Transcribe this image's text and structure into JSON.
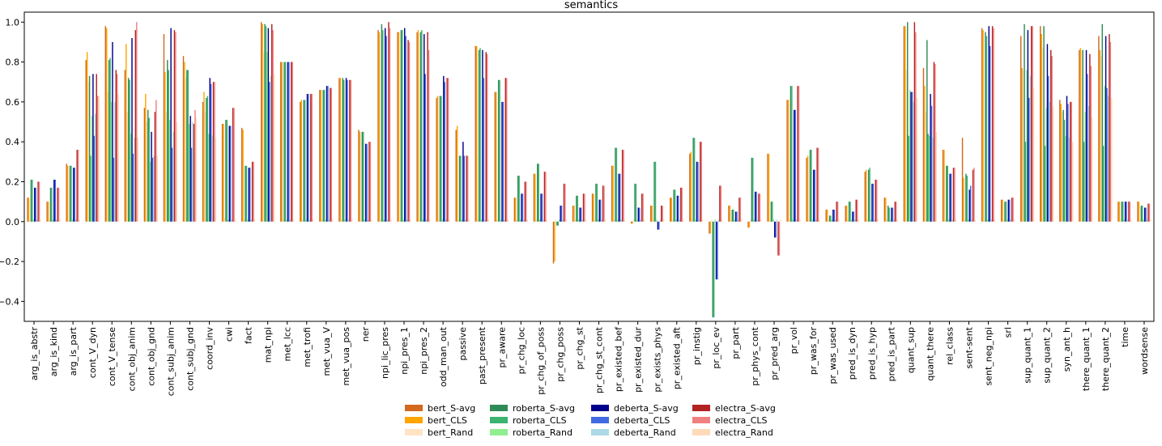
{
  "chart_data": {
    "type": "bar",
    "title": "semantics",
    "xlabel": "",
    "ylabel": "",
    "ylim": [
      -0.5,
      1.05
    ],
    "yticks": [
      -0.4,
      -0.2,
      0.0,
      0.2,
      0.4,
      0.6,
      0.8,
      1.0
    ],
    "ytick_labels": [
      "−0.4",
      "−0.2",
      "0.0",
      "0.2",
      "0.4",
      "0.6",
      "0.8",
      "1.0"
    ],
    "legend_position": "bottom-center",
    "categories": [
      "arg_is_abstr",
      "arg_is_kind",
      "arg_is_part",
      "cont_V_dyn",
      "cont_V_tense",
      "cont_obj_anim",
      "cont_obj_gnd",
      "cont_subj_anim",
      "cont_subj_gnd",
      "coord_inv",
      "cwi",
      "fact",
      "mat_npi",
      "met_lcc",
      "met_trofi",
      "met_vua_V",
      "met_vua_pos",
      "ner",
      "npi_lic_pres",
      "npi_pres_1",
      "npi_pres_2",
      "odd_man_out",
      "passive",
      "past_present",
      "pr_aware",
      "pr_chg_loc",
      "pr_chg_of_poss",
      "pr_chg_poss",
      "pr_chg_st",
      "pr_chg_st_cont",
      "pr_existed_bef",
      "pr_existed_dur",
      "pr_exists_phys",
      "pr_existed_aft",
      "pr_instig",
      "pr_loc_ev",
      "pr_part",
      "pr_phys_cont",
      "pr_pred_arg",
      "pr_vol",
      "pr_was_for",
      "pr_was_used",
      "pred_is_dyn",
      "pred_is_hyp",
      "pred_is_part",
      "quant_sup",
      "quant_there",
      "rel_class",
      "sent-sent",
      "sent_neg_npi",
      "srl",
      "sup_quant_1",
      "sup_quant_2",
      "syn_ant_h",
      "there_quant_1",
      "there_quant_2",
      "time",
      "wordsense"
    ],
    "series": [
      {
        "name": "bert_S-avg",
        "color": "#d2691e",
        "values": [
          0.12,
          0.1,
          0.29,
          0.81,
          0.98,
          0.76,
          0.57,
          0.94,
          0.83,
          0.6,
          0.49,
          0.47,
          1.0,
          0.8,
          0.6,
          0.66,
          0.72,
          0.46,
          0.96,
          0.95,
          0.95,
          0.62,
          0.46,
          0.88,
          0.65,
          0.12,
          0.24,
          -0.21,
          0.08,
          0.14,
          0.28,
          -0.01,
          0.08,
          0.12,
          0.34,
          -0.06,
          0.08,
          -0.03,
          0.34,
          0.61,
          0.32,
          0.06,
          0.08,
          0.25,
          0.12,
          0.98,
          0.77,
          0.36,
          0.42,
          0.97,
          0.11,
          0.93,
          0.98,
          0.61,
          0.86,
          0.93,
          0.1,
          0.1
        ]
      },
      {
        "name": "bert_CLS",
        "color": "#ffa500",
        "values": [
          0.12,
          0.1,
          0.28,
          0.85,
          0.97,
          0.89,
          0.64,
          0.75,
          0.8,
          0.65,
          0.49,
          0.46,
          0.99,
          0.8,
          0.61,
          0.66,
          0.72,
          0.45,
          0.95,
          0.95,
          0.96,
          0.63,
          0.48,
          0.88,
          0.65,
          0.12,
          0.24,
          -0.2,
          0.08,
          0.14,
          0.28,
          -0.01,
          0.08,
          0.12,
          0.35,
          -0.06,
          0.08,
          -0.03,
          0.34,
          0.61,
          0.33,
          0.06,
          0.08,
          0.26,
          0.12,
          0.98,
          0.68,
          0.36,
          0.22,
          0.96,
          0.11,
          0.77,
          0.94,
          0.59,
          0.87,
          0.86,
          0.1,
          0.1
        ]
      },
      {
        "name": "bert_Rand",
        "color": "#ffe4c4",
        "values": [
          0.01,
          0.01,
          0.01,
          0.7,
          0.65,
          0.55,
          0.5,
          0.55,
          0.72,
          0.55,
          0.02,
          0.01,
          0.85,
          0.01,
          0.01,
          0.01,
          0.01,
          0.01,
          0.01,
          0.01,
          0.01,
          0.01,
          0.01,
          0.01,
          0.01,
          0.01,
          0.01,
          0.01,
          0.01,
          0.01,
          0.01,
          0.01,
          0.01,
          0.01,
          0.01,
          0.01,
          0.01,
          0.01,
          0.01,
          0.01,
          0.01,
          0.01,
          0.01,
          0.01,
          0.01,
          0.76,
          0.55,
          0.01,
          0.01,
          0.01,
          0.01,
          0.76,
          0.87,
          0.55,
          0.86,
          0.83,
          0.01,
          0.01
        ]
      },
      {
        "name": "roberta_S-avg",
        "color": "#2e8b57",
        "values": [
          0.21,
          0.17,
          0.28,
          0.73,
          0.81,
          0.72,
          0.56,
          0.81,
          0.76,
          0.62,
          0.51,
          0.28,
          0.99,
          0.8,
          0.61,
          0.66,
          0.72,
          0.45,
          0.99,
          0.96,
          0.95,
          0.63,
          0.33,
          0.86,
          0.71,
          0.23,
          0.29,
          -0.02,
          0.13,
          0.19,
          0.37,
          0.19,
          0.3,
          0.16,
          0.42,
          -0.48,
          0.06,
          0.32,
          0.1,
          0.68,
          0.36,
          0.03,
          0.1,
          0.26,
          0.08,
          1.0,
          0.91,
          0.28,
          0.24,
          0.95,
          0.1,
          0.99,
          0.98,
          0.56,
          0.86,
          0.99,
          0.1,
          0.08
        ]
      },
      {
        "name": "roberta_CLS",
        "color": "#3cb371",
        "values": [
          0.21,
          0.17,
          0.28,
          0.33,
          0.82,
          0.71,
          0.52,
          0.76,
          0.76,
          0.63,
          0.51,
          0.28,
          0.98,
          0.8,
          0.61,
          0.66,
          0.71,
          0.45,
          0.96,
          0.96,
          0.96,
          0.63,
          0.33,
          0.87,
          0.71,
          0.23,
          0.29,
          -0.02,
          0.13,
          0.19,
          0.37,
          0.19,
          0.3,
          0.16,
          0.42,
          -0.48,
          0.06,
          0.32,
          0.1,
          0.68,
          0.36,
          0.03,
          0.1,
          0.27,
          0.07,
          0.43,
          0.44,
          0.28,
          0.23,
          0.93,
          0.1,
          0.4,
          0.38,
          0.51,
          0.4,
          0.38,
          0.1,
          0.08
        ]
      },
      {
        "name": "roberta_Rand",
        "color": "#90ee90",
        "values": [
          0.01,
          0.01,
          0.01,
          0.53,
          0.6,
          0.44,
          0.3,
          0.51,
          0.49,
          0.44,
          0.01,
          0.01,
          0.85,
          0.01,
          0.01,
          0.01,
          0.01,
          0.01,
          0.01,
          0.01,
          0.01,
          0.01,
          0.01,
          0.01,
          0.01,
          0.01,
          0.01,
          0.01,
          0.01,
          0.01,
          0.01,
          0.01,
          0.01,
          0.01,
          0.01,
          0.01,
          0.01,
          0.01,
          0.01,
          0.01,
          0.01,
          0.01,
          0.01,
          0.01,
          0.01,
          0.66,
          0.43,
          0.01,
          0.01,
          0.01,
          0.01,
          0.76,
          0.57,
          0.43,
          0.55,
          0.68,
          0.01,
          0.01
        ]
      },
      {
        "name": "deberta_S-avg",
        "color": "#00008b",
        "values": [
          0.17,
          0.21,
          0.27,
          0.74,
          0.9,
          0.92,
          0.45,
          0.97,
          0.53,
          0.72,
          0.48,
          0.27,
          0.97,
          0.8,
          0.64,
          0.68,
          0.72,
          0.39,
          0.97,
          0.97,
          0.94,
          0.73,
          0.4,
          0.86,
          0.6,
          0.14,
          0.14,
          0.08,
          0.07,
          0.11,
          0.24,
          0.07,
          -0.04,
          0.13,
          0.3,
          -0.29,
          0.05,
          0.15,
          -0.08,
          0.56,
          0.26,
          0.06,
          0.05,
          0.19,
          0.07,
          0.65,
          0.64,
          0.24,
          0.16,
          0.98,
          0.11,
          0.96,
          0.89,
          0.63,
          0.86,
          0.93,
          0.1,
          0.07
        ]
      },
      {
        "name": "deberta_CLS",
        "color": "#4169e1",
        "values": [
          0.17,
          0.21,
          0.27,
          0.43,
          0.32,
          0.34,
          0.32,
          0.37,
          0.37,
          0.69,
          0.48,
          0.27,
          0.7,
          0.8,
          0.64,
          0.68,
          0.71,
          0.39,
          0.93,
          0.93,
          0.74,
          0.7,
          0.33,
          0.72,
          0.6,
          0.14,
          0.14,
          0.08,
          0.07,
          0.11,
          0.24,
          0.07,
          -0.04,
          0.13,
          0.3,
          -0.29,
          0.05,
          0.15,
          -0.08,
          0.56,
          0.26,
          0.06,
          0.05,
          0.19,
          0.07,
          0.65,
          0.58,
          0.24,
          0.18,
          0.88,
          0.11,
          0.62,
          0.73,
          0.59,
          0.74,
          0.67,
          0.1,
          0.07
        ]
      },
      {
        "name": "deberta_Rand",
        "color": "#add8e6",
        "values": [
          0.01,
          0.01,
          0.01,
          0.54,
          0.6,
          0.42,
          0.33,
          0.45,
          0.5,
          0.43,
          0.01,
          0.01,
          0.73,
          0.01,
          0.01,
          0.01,
          0.01,
          0.01,
          0.01,
          0.01,
          0.01,
          0.01,
          0.01,
          0.01,
          0.01,
          0.01,
          0.01,
          0.01,
          0.01,
          0.01,
          0.01,
          0.01,
          0.01,
          0.01,
          0.01,
          0.01,
          0.01,
          0.01,
          0.01,
          0.01,
          0.01,
          0.01,
          0.01,
          0.01,
          0.01,
          0.6,
          0.42,
          0.01,
          0.01,
          0.01,
          0.01,
          0.73,
          0.6,
          0.42,
          0.58,
          0.63,
          0.01,
          0.01
        ]
      },
      {
        "name": "electra_S-avg",
        "color": "#b22222",
        "values": [
          0.2,
          0.17,
          0.36,
          0.74,
          0.76,
          0.96,
          0.55,
          0.96,
          0.49,
          0.7,
          0.57,
          0.3,
          0.99,
          0.8,
          0.64,
          0.67,
          0.71,
          0.4,
          1.0,
          0.91,
          0.95,
          0.72,
          0.33,
          0.85,
          0.72,
          0.2,
          0.25,
          0.19,
          0.14,
          0.18,
          0.36,
          0.14,
          0.08,
          0.17,
          0.4,
          0.18,
          0.12,
          0.14,
          -0.17,
          0.68,
          0.37,
          0.1,
          0.11,
          0.21,
          0.1,
          1.0,
          0.8,
          0.27,
          0.26,
          0.98,
          0.12,
          0.98,
          0.86,
          0.6,
          0.84,
          0.94,
          0.1,
          0.09
        ]
      },
      {
        "name": "electra_CLS",
        "color": "#f08080",
        "values": [
          0.2,
          0.17,
          0.36,
          0.63,
          0.74,
          1.0,
          0.61,
          0.95,
          0.56,
          0.7,
          0.57,
          0.3,
          0.96,
          0.8,
          0.64,
          0.67,
          0.71,
          0.4,
          0.97,
          0.9,
          0.86,
          0.72,
          0.33,
          0.84,
          0.72,
          0.2,
          0.25,
          0.19,
          0.14,
          0.18,
          0.36,
          0.14,
          0.08,
          0.17,
          0.4,
          0.18,
          0.12,
          0.14,
          -0.17,
          0.68,
          0.37,
          0.1,
          0.11,
          0.21,
          0.1,
          0.95,
          0.79,
          0.27,
          0.27,
          0.97,
          0.12,
          0.98,
          0.83,
          0.6,
          0.78,
          0.9,
          0.1,
          0.09
        ]
      },
      {
        "name": "electra_Rand",
        "color": "#ffdab9",
        "values": [
          0.01,
          0.01,
          0.01,
          0.63,
          0.64,
          0.42,
          0.33,
          0.5,
          0.52,
          0.42,
          0.01,
          0.01,
          0.74,
          0.01,
          0.01,
          0.01,
          0.01,
          0.01,
          0.01,
          0.01,
          0.01,
          0.01,
          0.01,
          0.01,
          0.01,
          0.01,
          0.01,
          0.01,
          0.01,
          0.01,
          0.01,
          0.01,
          0.01,
          0.01,
          0.01,
          0.01,
          0.01,
          0.01,
          0.01,
          0.01,
          0.01,
          0.01,
          0.01,
          0.01,
          0.01,
          0.62,
          0.45,
          0.01,
          0.01,
          0.01,
          0.01,
          0.67,
          0.58,
          0.4,
          0.52,
          0.62,
          0.01,
          0.01
        ]
      }
    ]
  }
}
